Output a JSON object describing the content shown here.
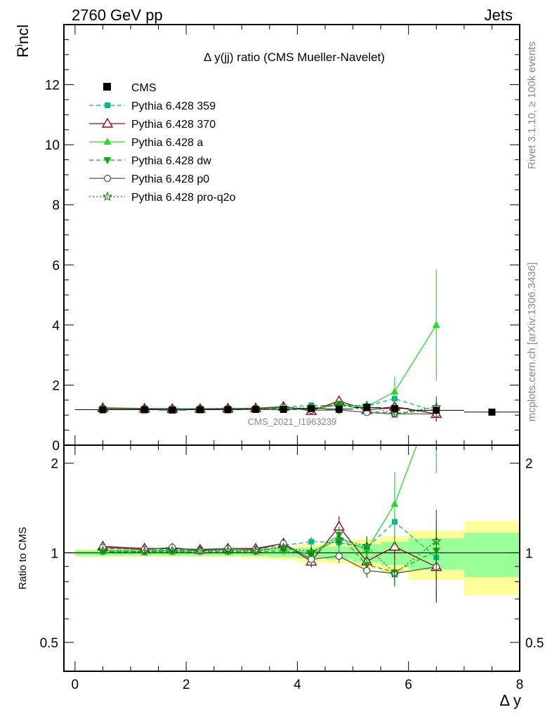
{
  "header": {
    "left": "2760 GeV pp",
    "right": "Jets"
  },
  "side_labels": {
    "rivet": "Rivet 3.1.10, ≥ 100k events",
    "mcplots": "mcplots.cern.ch [arXiv:1306.3436]"
  },
  "chart_data": {
    "type": "line",
    "title": "Δ y(jj) ratio (CMS Mueller-Navelet)",
    "watermark": "CMS_2021_I1963239",
    "ylabel_main_base": "R",
    "ylabel_main_sup": "i",
    "ylabel_main_rest": "ncl",
    "ylabel_ratio": "Ratio to CMS",
    "xlabel": "Δ y",
    "xlim": [
      -0.2,
      8.0
    ],
    "ylim_main": [
      0,
      14
    ],
    "ylim_ratio": [
      0.4,
      2.3
    ],
    "ratio_log_scale": true,
    "x_ticks": [
      "0",
      "2",
      "4",
      "6",
      "8"
    ],
    "y_ticks_main": [
      "0",
      "2",
      "4",
      "6",
      "8",
      "10",
      "12"
    ],
    "y_ticks_ratio": [
      "0.5",
      "1",
      "2"
    ],
    "data": {
      "name": "CMS",
      "color": "#000000",
      "x": [
        0.5,
        1.25,
        1.75,
        2.25,
        2.75,
        3.25,
        3.75,
        4.25,
        4.75,
        5.25,
        5.75,
        6.5,
        7.5
      ],
      "y": [
        1.18,
        1.18,
        1.17,
        1.18,
        1.18,
        1.19,
        1.19,
        1.22,
        1.2,
        1.25,
        1.22,
        1.16,
        1.1
      ],
      "xerr": [
        0.5,
        0.25,
        0.25,
        0.25,
        0.25,
        0.25,
        0.25,
        0.25,
        0.25,
        0.25,
        0.25,
        0.5,
        0.5
      ],
      "band_inner": [
        0.02,
        0.02,
        0.02,
        0.02,
        0.02,
        0.025,
        0.03,
        0.04,
        0.05,
        0.07,
        0.09,
        0.12,
        0.17
      ],
      "band_outer": [
        0.03,
        0.03,
        0.03,
        0.03,
        0.035,
        0.04,
        0.05,
        0.07,
        0.08,
        0.11,
        0.14,
        0.19,
        0.28
      ]
    },
    "series": [
      {
        "name": "Pythia 6.428 359",
        "color": "#00bb88",
        "dash": "6,4",
        "marker": "square-filled",
        "x": [
          0.5,
          1.25,
          1.75,
          2.25,
          2.75,
          3.25,
          3.75,
          4.25,
          4.75,
          5.25,
          5.75,
          6.5
        ],
        "y": [
          1.22,
          1.21,
          1.2,
          1.21,
          1.22,
          1.22,
          1.26,
          1.33,
          1.3,
          1.3,
          1.55,
          1.12
        ],
        "yerr": [
          0.02,
          0.02,
          0.02,
          0.02,
          0.02,
          0.03,
          0.03,
          0.05,
          0.06,
          0.1,
          0.12,
          0.3
        ]
      },
      {
        "name": "Pythia 6.428 370",
        "color": "#8b0a1a",
        "dash": "",
        "marker": "triangle-open",
        "x": [
          0.5,
          1.25,
          1.75,
          2.25,
          2.75,
          3.25,
          3.75,
          4.25,
          4.75,
          5.25,
          5.75,
          6.5
        ],
        "y": [
          1.24,
          1.22,
          1.21,
          1.21,
          1.22,
          1.23,
          1.28,
          1.14,
          1.47,
          1.17,
          1.28,
          1.04
        ],
        "yerr": [
          0.02,
          0.02,
          0.02,
          0.02,
          0.02,
          0.03,
          0.04,
          0.05,
          0.12,
          0.1,
          0.15,
          0.25
        ]
      },
      {
        "name": "Pythia 6.428 a",
        "color": "#22dd22",
        "dash": "",
        "marker": "triangle-filled",
        "x": [
          0.5,
          1.25,
          1.75,
          2.25,
          2.75,
          3.25,
          3.75,
          4.25,
          4.75,
          5.25,
          5.75,
          6.5
        ],
        "y": [
          1.2,
          1.2,
          1.19,
          1.2,
          1.21,
          1.21,
          1.24,
          1.2,
          1.35,
          1.28,
          1.78,
          4.0
        ],
        "yerr": [
          0.02,
          0.02,
          0.02,
          0.02,
          0.02,
          0.03,
          0.04,
          0.05,
          0.1,
          0.1,
          0.5,
          1.85
        ]
      },
      {
        "name": "Pythia 6.428 dw",
        "color": "#11aa11",
        "dash": "6,4",
        "marker": "triangle-down-filled",
        "x": [
          0.5,
          1.25,
          1.75,
          2.25,
          2.75,
          3.25,
          3.75,
          4.25,
          4.75,
          5.25,
          5.75,
          6.5
        ],
        "y": [
          1.19,
          1.19,
          1.18,
          1.19,
          1.19,
          1.2,
          1.21,
          1.21,
          1.38,
          1.14,
          1.05,
          1.18
        ],
        "yerr": [
          0.02,
          0.02,
          0.02,
          0.02,
          0.02,
          0.03,
          0.03,
          0.05,
          0.09,
          0.1,
          0.1,
          0.3
        ]
      },
      {
        "name": "Pythia 6.428 p0",
        "color": "#555555",
        "dash": "",
        "marker": "circle-open",
        "x": [
          0.5,
          1.25,
          1.75,
          2.25,
          2.75,
          3.25,
          3.75,
          4.25,
          4.75,
          5.25,
          5.75,
          6.5
        ],
        "y": [
          1.23,
          1.21,
          1.22,
          1.2,
          1.22,
          1.22,
          1.28,
          1.16,
          1.17,
          1.09,
          1.04,
          1.04
        ],
        "yerr": [
          0.02,
          0.02,
          0.02,
          0.02,
          0.02,
          0.03,
          0.03,
          0.05,
          0.06,
          0.06,
          0.06,
          0.1
        ]
      },
      {
        "name": "Pythia 6.428 pro-q2o",
        "color": "#117711",
        "dash": "2,3",
        "marker": "star-open",
        "x": [
          0.5,
          1.25,
          1.75,
          2.25,
          2.75,
          3.25,
          3.75,
          4.25,
          4.75,
          5.25,
          5.75,
          6.5
        ],
        "y": [
          1.2,
          1.19,
          1.19,
          1.2,
          1.2,
          1.21,
          1.24,
          1.23,
          1.33,
          1.32,
          1.04,
          1.27
        ],
        "yerr": [
          0.02,
          0.02,
          0.02,
          0.02,
          0.02,
          0.03,
          0.03,
          0.05,
          0.08,
          0.1,
          0.1,
          0.35
        ]
      }
    ]
  }
}
